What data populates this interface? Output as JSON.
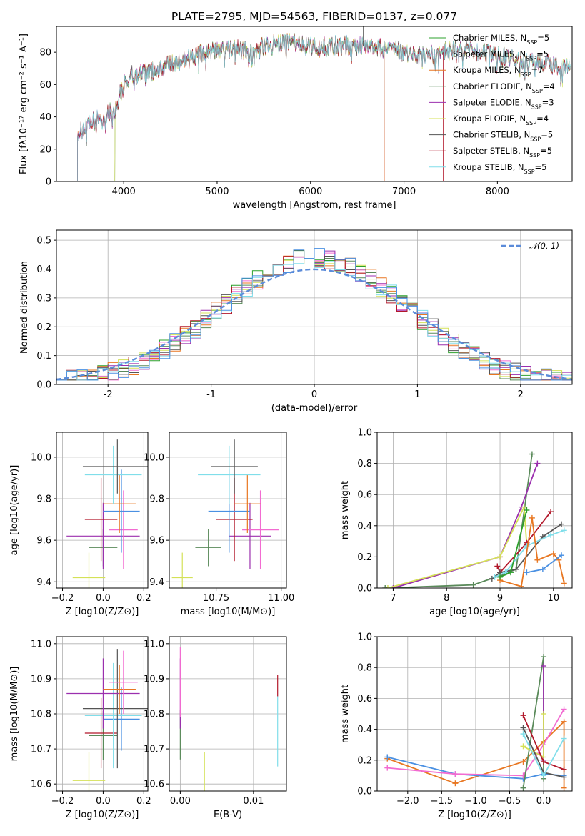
{
  "colors": {
    "chabrier_miles": "#2ca02c",
    "salpeter_miles": "#f26bd1",
    "kroupa_miles": "#e87722",
    "chabrier_elodie": "#5a8a5a",
    "salpeter_elodie": "#9b2fae",
    "kroupa_elodie": "#d4e157",
    "chabrier_stelib": "#555555",
    "salpeter_stelib": "#b2182b",
    "kroupa_stelib": "#80deea",
    "extra_blue": "#4a90e2",
    "normal": "#5b8bd9"
  },
  "chart_data": [
    {
      "id": "spectrum",
      "type": "line",
      "title": "PLATE=2795, MJD=54563, FIBERID=0137, z=0.077",
      "xlabel": "wavelength [Angstrom, rest frame]",
      "ylabel": "Flux [fλ10⁻¹⁷ erg cm⁻² s⁻¹ A⁻¹]",
      "xlim": [
        3280,
        8800
      ],
      "ylim": [
        0,
        96
      ],
      "xticks": [
        4000,
        5000,
        6000,
        7000,
        8000
      ],
      "yticks": [
        0,
        20,
        40,
        60,
        80
      ],
      "legend_position": "top-right",
      "legend": [
        "Chabrier MILES, N_SSP=5",
        "Salpeter MILES, N_SSP=5",
        "Kroupa MILES, N_SSP=7",
        "Chabrier ELODIE, N_SSP=4",
        "Salpeter ELODIE, N_SSP=3",
        "Kroupa ELODIE, N_SSP=4",
        "Chabrier STELIB, N_SSP=5",
        "Salpeter STELIB, N_SSP=5",
        "Kroupa STELIB, N_SSP=5"
      ],
      "legend_colors": [
        "chabrier_miles",
        "salpeter_miles",
        "kroupa_miles",
        "chabrier_elodie",
        "salpeter_elodie",
        "kroupa_elodie",
        "chabrier_stelib",
        "salpeter_stelib",
        "kroupa_stelib"
      ],
      "continuum": {
        "x": [
          3500,
          3600,
          3700,
          3800,
          3900,
          3950,
          4000,
          4100,
          4300,
          4500,
          4700,
          4900,
          5100,
          5300,
          5500,
          5800,
          6000,
          6300,
          6600,
          6800,
          7000,
          7200,
          7400,
          7600,
          7800,
          8000,
          8200,
          8400,
          8600,
          8780
        ],
        "y": [
          30,
          33,
          38,
          40,
          45,
          52,
          60,
          66,
          68,
          72,
          76,
          80,
          82,
          81,
          84,
          86,
          83,
          84,
          84,
          82,
          80,
          78,
          80,
          82,
          80,
          78,
          76,
          74,
          72,
          70
        ]
      }
    },
    {
      "id": "residuals",
      "type": "histogram",
      "xlabel": "(data-model)/error",
      "ylabel": "Normed distribution",
      "xlim": [
        -2.5,
        2.5
      ],
      "ylim": [
        0,
        0.535
      ],
      "xticks": [
        -2,
        -1,
        0,
        1,
        2
      ],
      "yticks": [
        0.0,
        0.1,
        0.2,
        0.3,
        0.4,
        0.5
      ],
      "legend_position": "top-right",
      "legend": [
        "𝒩(0, 1)"
      ],
      "bin_width": 0.1
    },
    {
      "id": "age_vs_Z",
      "type": "scatter",
      "xlabel": "Z [log10(Z/Z⊙)]",
      "ylabel": "age  [log10(age/yr)]",
      "xlim": [
        -0.23,
        0.22
      ],
      "ylim": [
        9.37,
        10.12
      ],
      "xticks": [
        -0.2,
        0.0,
        0.2
      ],
      "xtick_labels": [
        "−0.2",
        "0.0",
        "0.2"
      ],
      "yticks": [
        9.4,
        9.6,
        9.8,
        10.0
      ],
      "points": [
        {
          "color": "kroupa_elodie",
          "x": -0.07,
          "xerr": 0.08,
          "y": 9.42,
          "yerr": 0.12
        },
        {
          "color": "chabrier_elodie",
          "x": 0.0,
          "xerr": 0.07,
          "y": 9.565,
          "yerr": 0.09
        },
        {
          "color": "salpeter_elodie",
          "x": 0.0,
          "xerr": 0.18,
          "y": 9.62,
          "yerr": 0.16
        },
        {
          "color": "salpeter_miles",
          "x": 0.1,
          "xerr": 0.07,
          "y": 9.65,
          "yerr": 0.19
        },
        {
          "color": "salpeter_stelib",
          "x": -0.01,
          "xerr": 0.08,
          "y": 9.7,
          "yerr": 0.2
        },
        {
          "color": "extra_blue",
          "x": 0.09,
          "xerr": 0.09,
          "y": 9.74,
          "yerr": 0.2
        },
        {
          "color": "kroupa_miles",
          "x": 0.08,
          "xerr": 0.08,
          "y": 9.775,
          "yerr": 0.14
        },
        {
          "color": "kroupa_stelib",
          "x": 0.05,
          "xerr": 0.14,
          "y": 9.915,
          "yerr": 0.14
        },
        {
          "color": "chabrier_stelib",
          "x": 0.07,
          "xerr": 0.17,
          "y": 9.955,
          "yerr": 0.13
        }
      ]
    },
    {
      "id": "age_vs_mass",
      "type": "scatter",
      "xlabel": "mass [log10(M/M⊙)]",
      "ylabel": "",
      "xlim": [
        10.57,
        11.02
      ],
      "ylim": [
        9.37,
        10.12
      ],
      "xticks": [
        10.75,
        11.0
      ],
      "xtick_labels": [
        "10.75",
        "11.00"
      ],
      "yticks": [
        9.4,
        9.6,
        9.8,
        10.0
      ],
      "points": [
        {
          "color": "kroupa_elodie",
          "x": 10.62,
          "xerr": 0.04,
          "y": 9.42,
          "yerr": 0.12
        },
        {
          "color": "chabrier_elodie",
          "x": 10.72,
          "xerr": 0.05,
          "y": 9.565,
          "yerr": 0.09
        },
        {
          "color": "salpeter_elodie",
          "x": 10.88,
          "xerr": 0.08,
          "y": 9.62,
          "yerr": 0.16
        },
        {
          "color": "salpeter_miles",
          "x": 10.92,
          "xerr": 0.07,
          "y": 9.65,
          "yerr": 0.19
        },
        {
          "color": "salpeter_stelib",
          "x": 10.82,
          "xerr": 0.07,
          "y": 9.7,
          "yerr": 0.2
        },
        {
          "color": "extra_blue",
          "x": 10.8,
          "xerr": 0.08,
          "y": 9.74,
          "yerr": 0.2
        },
        {
          "color": "kroupa_miles",
          "x": 10.87,
          "xerr": 0.05,
          "y": 9.775,
          "yerr": 0.14
        },
        {
          "color": "kroupa_stelib",
          "x": 10.8,
          "xerr": 0.12,
          "y": 9.915,
          "yerr": 0.14
        },
        {
          "color": "chabrier_stelib",
          "x": 10.82,
          "xerr": 0.09,
          "y": 9.955,
          "yerr": 0.13
        }
      ]
    },
    {
      "id": "mass_weight_vs_age",
      "type": "line",
      "xlabel": "age  [log10(age/yr)]",
      "ylabel": "mass weight",
      "xlim": [
        6.7,
        10.35
      ],
      "ylim": [
        0,
        1.0
      ],
      "xticks": [
        7,
        8,
        9,
        10
      ],
      "yticks": [
        0.0,
        0.2,
        0.4,
        0.6,
        0.8,
        1.0
      ],
      "series": [
        {
          "color": "chabrier_elodie",
          "x": [
            6.85,
            8.5,
            9.0,
            9.3,
            9.6
          ],
          "y": [
            0.0,
            0.02,
            0.08,
            0.12,
            0.86
          ]
        },
        {
          "color": "salpeter_elodie",
          "x": [
            7.0,
            9.0,
            9.4,
            9.7
          ],
          "y": [
            0.0,
            0.2,
            0.52,
            0.8
          ]
        },
        {
          "color": "kroupa_elodie",
          "x": [
            6.9,
            9.0,
            9.45,
            9.5
          ],
          "y": [
            0.0,
            0.2,
            0.52,
            0.28
          ]
        },
        {
          "color": "salpeter_stelib",
          "x": [
            8.95,
            9.0,
            9.5,
            9.95
          ],
          "y": [
            0.14,
            0.1,
            0.29,
            0.49
          ]
        },
        {
          "color": "chabrier_stelib",
          "x": [
            8.85,
            9.0,
            9.3,
            9.8,
            10.15
          ],
          "y": [
            0.06,
            0.1,
            0.12,
            0.33,
            0.41
          ]
        },
        {
          "color": "kroupa_stelib",
          "x": [
            8.9,
            9.1,
            9.5,
            9.95,
            10.2
          ],
          "y": [
            0.07,
            0.1,
            0.27,
            0.34,
            0.37
          ]
        },
        {
          "color": "kroupa_miles",
          "x": [
            9.0,
            9.4,
            9.6,
            9.7,
            10.0,
            10.1,
            10.2
          ],
          "y": [
            0.05,
            0.01,
            0.45,
            0.18,
            0.22,
            0.18,
            0.03
          ]
        },
        {
          "color": "extra_blue",
          "x": [
            9.5,
            9.8,
            10.15
          ],
          "y": [
            0.1,
            0.12,
            0.21
          ]
        },
        {
          "color": "chabrier_miles",
          "x": [
            9.0,
            9.2,
            9.5
          ],
          "y": [
            0.07,
            0.1,
            0.5
          ]
        }
      ]
    },
    {
      "id": "mass_vs_Z",
      "type": "scatter",
      "xlabel": "Z [log10(Z/Z⊙)]",
      "ylabel": "mass [log10(M/M⊙)]",
      "xlim": [
        -0.23,
        0.22
      ],
      "ylim": [
        10.58,
        11.02
      ],
      "xticks": [
        -0.2,
        0.0,
        0.2
      ],
      "xtick_labels": [
        "−0.2",
        "0.0",
        "0.2"
      ],
      "yticks": [
        10.6,
        10.7,
        10.8,
        10.9,
        11.0
      ],
      "points": [
        {
          "color": "kroupa_elodie",
          "x": -0.07,
          "xerr": 0.08,
          "y": 10.61,
          "yerr": 0.08
        },
        {
          "color": "chabrier_elodie",
          "x": 0.0,
          "xerr": 0.07,
          "y": 10.738,
          "yerr": 0.07
        },
        {
          "color": "salpeter_stelib",
          "x": -0.01,
          "xerr": 0.08,
          "y": 10.745,
          "yerr": 0.1
        },
        {
          "color": "extra_blue",
          "x": 0.09,
          "xerr": 0.09,
          "y": 10.785,
          "yerr": 0.09
        },
        {
          "color": "kroupa_stelib",
          "x": 0.05,
          "xerr": 0.14,
          "y": 10.795,
          "yerr": 0.15
        },
        {
          "color": "chabrier_stelib",
          "x": 0.07,
          "xerr": 0.17,
          "y": 10.815,
          "yerr": 0.17
        },
        {
          "color": "salpeter_elodie",
          "x": 0.0,
          "xerr": 0.18,
          "y": 10.858,
          "yerr": 0.1
        },
        {
          "color": "kroupa_miles",
          "x": 0.08,
          "xerr": 0.08,
          "y": 10.87,
          "yerr": 0.07
        },
        {
          "color": "salpeter_miles",
          "x": 0.1,
          "xerr": 0.07,
          "y": 10.89,
          "yerr": 0.09
        }
      ]
    },
    {
      "id": "mass_vs_ebv",
      "type": "scatter",
      "xlabel": "E(B-V)",
      "ylabel": "",
      "xlim": [
        -0.0015,
        0.0145
      ],
      "ylim": [
        10.58,
        11.02
      ],
      "xticks": [
        0.0,
        0.01
      ],
      "xtick_labels": [
        "0.00",
        "0.01"
      ],
      "yticks": [
        10.6,
        10.7,
        10.8,
        10.9,
        11.0
      ],
      "points": [
        {
          "color": "kroupa_elodie",
          "x": 0.0033,
          "xerr": 0.0,
          "y": 10.61,
          "yerr": 0.08
        },
        {
          "color": "chabrier_elodie",
          "x": 0.0,
          "xerr": 0.0,
          "y": 10.74,
          "yerr": 0.07
        },
        {
          "color": "salpeter_elodie",
          "x": 0.0,
          "xerr": 0.0,
          "y": 10.858,
          "yerr": 0.1
        },
        {
          "color": "salpeter_miles",
          "x": 0.0,
          "xerr": 0.0,
          "y": 10.89,
          "yerr": 0.1
        },
        {
          "color": "kroupa_stelib",
          "x": 0.0133,
          "xerr": 0.0,
          "y": 10.75,
          "yerr": 0.1
        },
        {
          "color": "salpeter_stelib",
          "x": 0.0133,
          "xerr": 0.0,
          "y": 10.88,
          "yerr": 0.03
        }
      ]
    },
    {
      "id": "mass_weight_vs_Z",
      "type": "line",
      "xlabel": "Z [log10(Z/Z⊙)]",
      "ylabel": "mass weight",
      "xlim": [
        -2.45,
        0.42
      ],
      "ylim": [
        0,
        1.0
      ],
      "xticks": [
        -2.0,
        -1.5,
        -1.0,
        -0.5,
        0.0
      ],
      "xtick_labels": [
        "−2.0",
        "−1.5",
        "−1.0",
        "−0.5",
        "0.0"
      ],
      "yticks": [
        0.0,
        0.2,
        0.4,
        0.6,
        0.8,
        1.0
      ],
      "series": [
        {
          "color": "kroupa_miles",
          "x": [
            -2.3,
            -1.3,
            -0.3,
            0.0,
            0.3,
            0.3
          ],
          "y": [
            0.21,
            0.05,
            0.19,
            0.32,
            0.45,
            0.02
          ]
        },
        {
          "color": "extra_blue",
          "x": [
            -2.3,
            -1.3,
            -0.3,
            0.0,
            0.3
          ],
          "y": [
            0.22,
            0.11,
            0.08,
            0.11,
            0.1
          ]
        },
        {
          "color": "salpeter_miles",
          "x": [
            -2.3,
            -1.3,
            -0.3,
            0.0,
            0.3
          ],
          "y": [
            0.15,
            0.11,
            0.1,
            0.3,
            0.53
          ]
        },
        {
          "color": "chabrier_elodie",
          "x": [
            -0.3,
            0.0,
            0.0
          ],
          "y": [
            0.02,
            0.87,
            0.08
          ]
        },
        {
          "color": "salpeter_elodie",
          "x": [
            0.0,
            0.0
          ],
          "y": [
            0.2,
            0.81
          ]
        },
        {
          "color": "kroupa_elodie",
          "x": [
            -0.3,
            0.0,
            0.0
          ],
          "y": [
            0.29,
            0.22,
            0.5
          ]
        },
        {
          "color": "salpeter_stelib",
          "x": [
            -0.3,
            0.0,
            0.3
          ],
          "y": [
            0.49,
            0.19,
            0.14
          ]
        },
        {
          "color": "chabrier_stelib",
          "x": [
            -0.3,
            0.0,
            0.3
          ],
          "y": [
            0.41,
            0.12,
            0.09
          ]
        },
        {
          "color": "kroupa_stelib",
          "x": [
            -0.3,
            0.0,
            0.3
          ],
          "y": [
            0.37,
            0.1,
            0.34
          ]
        }
      ]
    }
  ]
}
